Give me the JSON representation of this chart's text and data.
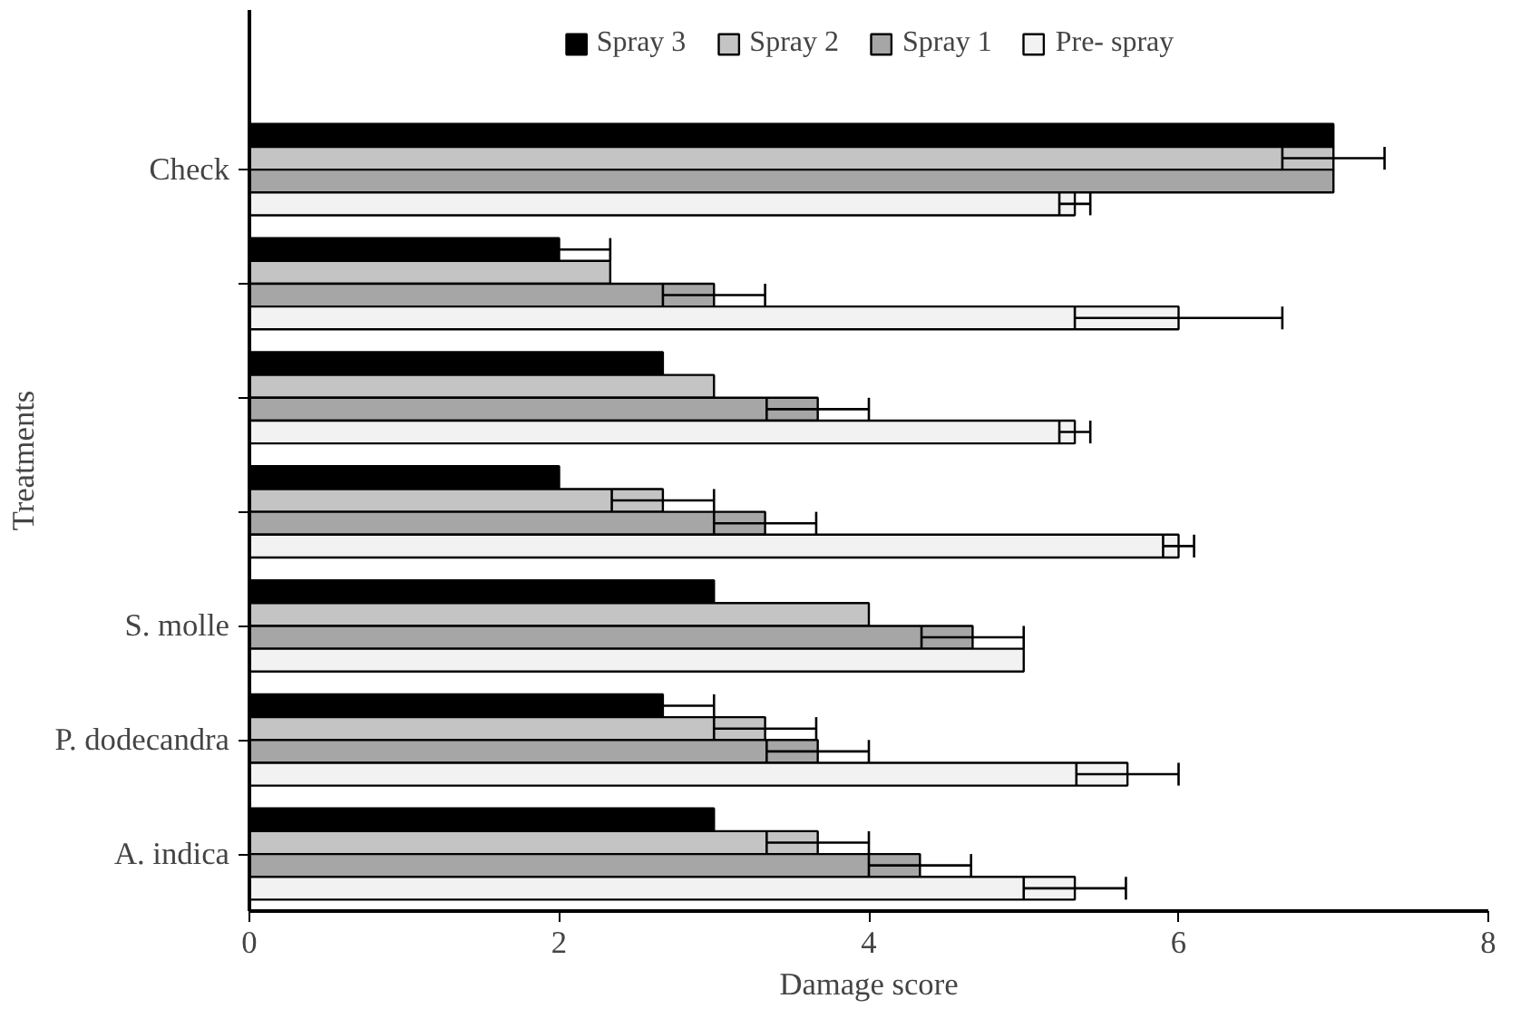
{
  "chart_data": {
    "type": "bar",
    "orientation": "horizontal",
    "xlabel": "Damage score",
    "ylabel": "Treatments",
    "categories": [
      "Check",
      null,
      null,
      null,
      "S. molle",
      "P. dodecandra",
      "A. indica"
    ],
    "series": [
      {
        "name": "Spray 3",
        "color": "#000000",
        "values": [
          7,
          2,
          2.67,
          2,
          3,
          2.67,
          3
        ],
        "errors": [
          null,
          0.33,
          null,
          null,
          null,
          0.33,
          null
        ]
      },
      {
        "name": "Spray 2",
        "color": "#c4c4c4",
        "values": [
          7,
          2.33,
          3,
          2.67,
          4,
          3.33,
          3.67
        ],
        "errors": [
          0.33,
          null,
          null,
          0.33,
          null,
          0.33,
          0.33
        ]
      },
      {
        "name": "Spray 1",
        "color": "#a6a6a6",
        "values": [
          7,
          3,
          3.67,
          3.33,
          4.67,
          3.67,
          4.33
        ],
        "errors": [
          null,
          0.33,
          0.33,
          0.33,
          0.33,
          0.33,
          0.33
        ]
      },
      {
        "name": "Pre- spray",
        "color": "#f2f2f2",
        "values": [
          5.33,
          6,
          5.33,
          6,
          5,
          5.67,
          5.33
        ],
        "errors": [
          0.1,
          0.67,
          0.1,
          0.1,
          null,
          0.33,
          0.33
        ]
      }
    ],
    "xlim": [
      0,
      8
    ],
    "xticks": [
      0,
      2,
      4,
      6,
      8
    ],
    "grid": false,
    "legend": "top"
  }
}
